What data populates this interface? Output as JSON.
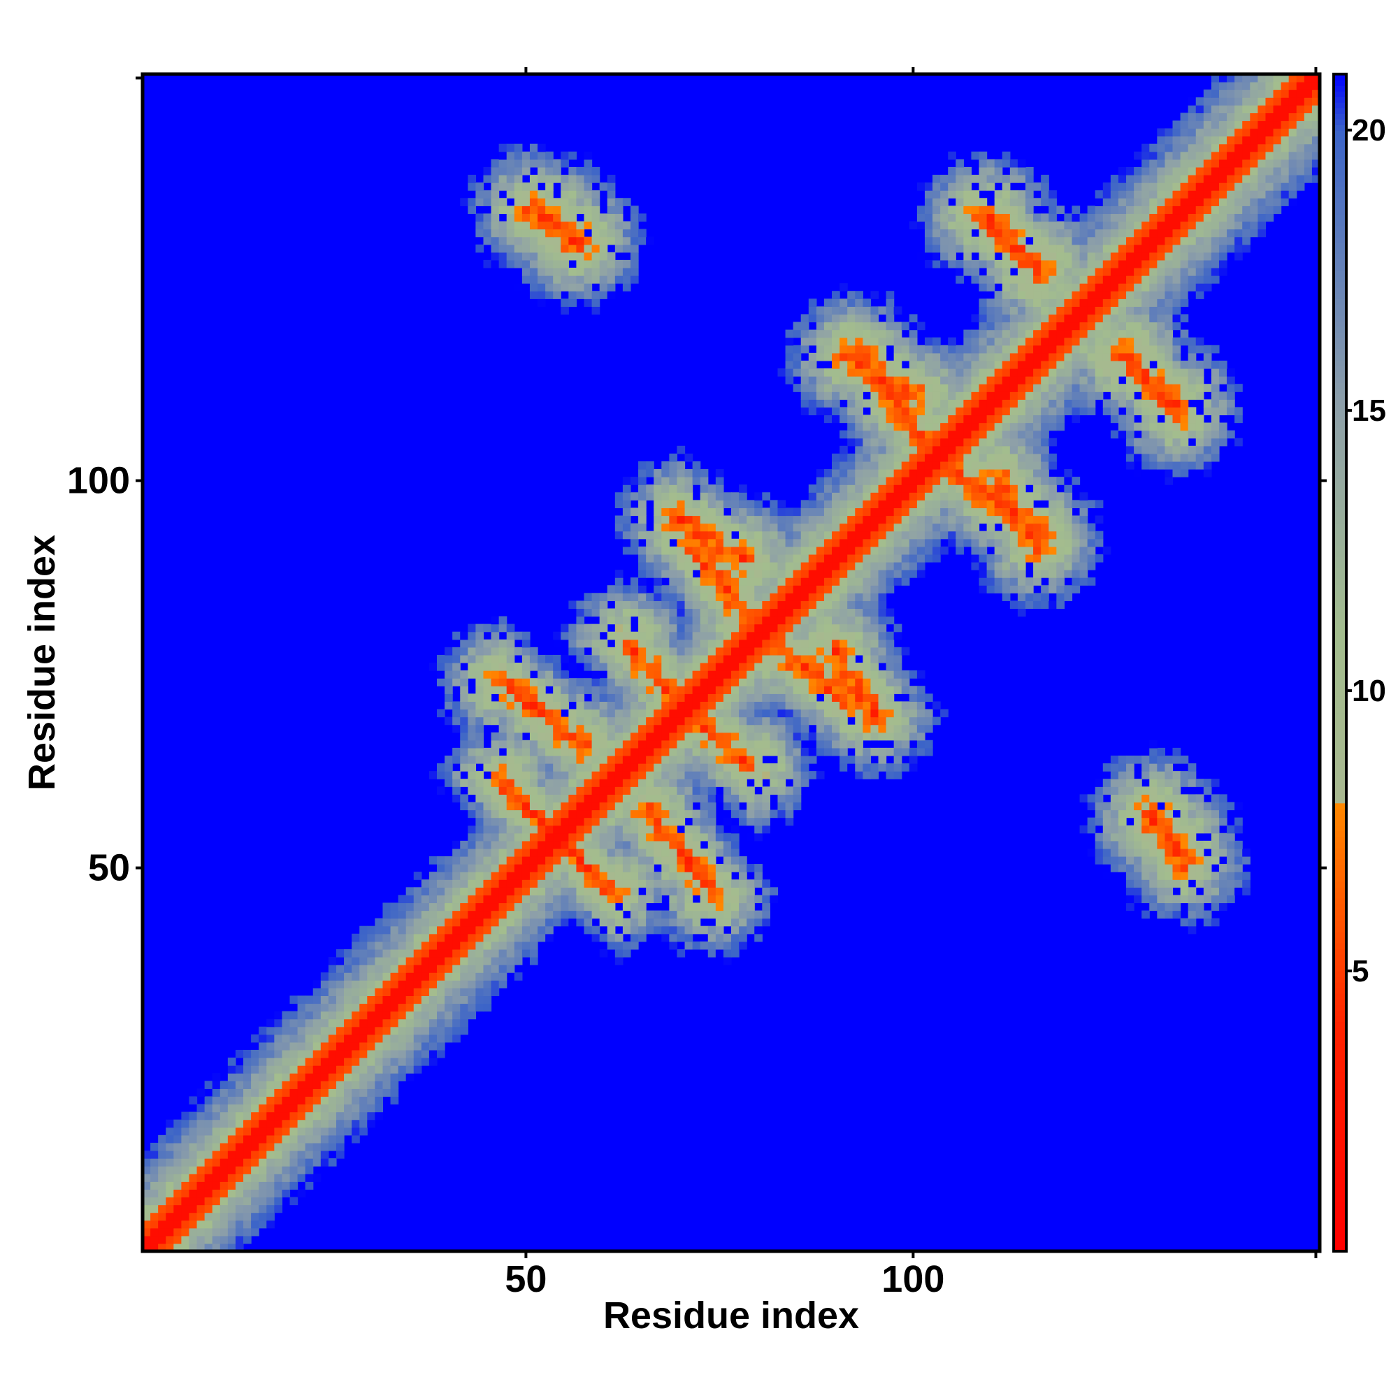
{
  "chart_data": {
    "type": "heatmap",
    "title": "",
    "xlabel": "Residue index",
    "ylabel": "Residue index",
    "n_residues": 152,
    "xlim": [
      1,
      152
    ],
    "ylim": [
      1,
      152
    ],
    "x_ticks": [
      50,
      100
    ],
    "y_ticks": [
      50,
      100
    ],
    "x_tick_labels": [
      "50",
      "100"
    ],
    "y_tick_labels": [
      "50",
      "100"
    ],
    "colorbar": {
      "range": [
        0,
        21
      ],
      "ticks": [
        5,
        10,
        15,
        20
      ],
      "tick_labels": [
        "5",
        "10",
        "15",
        "20"
      ],
      "colors": [
        {
          "value": 0,
          "color": "#ff0000"
        },
        {
          "value": 4,
          "color": "#ff2200"
        },
        {
          "value": 8,
          "color": "#ff8800"
        },
        {
          "value": 8.01,
          "color": "#a8b890"
        },
        {
          "value": 11,
          "color": "#a3bd8e"
        },
        {
          "value": 15,
          "color": "#8ea0a8"
        },
        {
          "value": 20,
          "color": "#3c64c8"
        },
        {
          "value": 21,
          "color": "#0000ff"
        }
      ],
      "background_color": "#0000ff"
    },
    "description_of_values": "Distance matrix between residue pairs; values above ~20 shown as blue background",
    "contact_features": [
      {
        "type": "diagonal",
        "from": 1,
        "to": 152
      },
      {
        "type": "anti-parallel",
        "i": [
          70,
          78
        ],
        "j": [
          90,
          95
        ]
      },
      {
        "type": "anti-parallel",
        "i": [
          47,
          57
        ],
        "j": [
          66,
          74
        ]
      },
      {
        "type": "anti-parallel",
        "i": [
          54,
          61
        ],
        "j": [
          47,
          54
        ]
      },
      {
        "type": "anti-parallel",
        "i": [
          71,
          79
        ],
        "j": [
          63,
          70
        ]
      },
      {
        "type": "anti-parallel",
        "i": [
          83,
          91
        ],
        "j": [
          72,
          78
        ]
      },
      {
        "type": "anti-parallel",
        "i": [
          92,
          100
        ],
        "j": [
          111,
          116
        ]
      },
      {
        "type": "anti-parallel",
        "i": [
          103,
          109
        ],
        "j": [
          98,
          104
        ]
      },
      {
        "type": "anti-parallel",
        "i": [
          109,
          116
        ],
        "j": [
          93,
          99
        ]
      },
      {
        "type": "anti-parallel",
        "i": [
          127,
          134
        ],
        "j": [
          110,
          116
        ]
      },
      {
        "type": "anti-parallel",
        "i": [
          109,
          116
        ],
        "j": [
          128,
          134
        ]
      },
      {
        "type": "anti-parallel",
        "i": [
          51,
          57
        ],
        "j": [
          131,
          135
        ]
      },
      {
        "type": "anti-parallel",
        "i": [
          131,
          134
        ],
        "j": [
          53,
          56
        ]
      }
    ]
  }
}
